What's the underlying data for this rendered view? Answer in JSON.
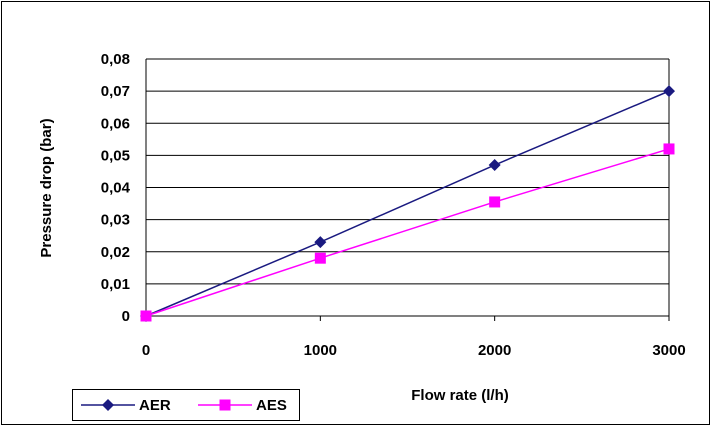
{
  "chart_data": {
    "type": "line",
    "x": [
      0,
      1000,
      2000,
      3000
    ],
    "x_tick_labels": [
      "0",
      "1000",
      "2000",
      "3000"
    ],
    "xlabel": "Flow rate (l/h)",
    "ylabel": "Pressure drop (bar)",
    "ylim": [
      0,
      0.08
    ],
    "y_ticks": [
      0,
      0.01,
      0.02,
      0.03,
      0.04,
      0.05,
      0.06,
      0.07,
      0.08
    ],
    "y_tick_labels": [
      "0",
      "0,01",
      "0,02",
      "0,03",
      "0,04",
      "0,05",
      "0,06",
      "0,07",
      "0,08"
    ],
    "grid": "horizontal",
    "legend_position": "bottom-left",
    "series": [
      {
        "name": "AER",
        "color": "#1a1a80",
        "marker": "diamond",
        "values": [
          0,
          0.023,
          0.047,
          0.07
        ]
      },
      {
        "name": "AES",
        "color": "#ff00ff",
        "marker": "square",
        "values": [
          0,
          0.018,
          0.0355,
          0.052
        ]
      }
    ]
  }
}
